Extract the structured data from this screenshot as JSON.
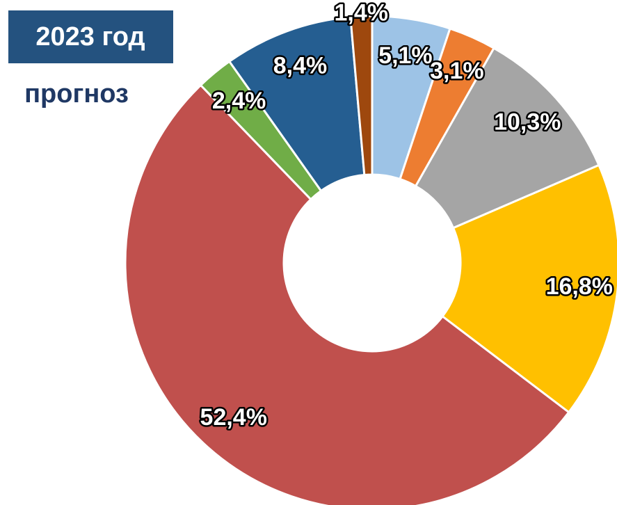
{
  "chart_data": {
    "type": "donut",
    "title": "2023 год",
    "subtitle": "прогноз",
    "categories": [
      null,
      null,
      null,
      null,
      null,
      null,
      null,
      null
    ],
    "values": [
      5.1,
      3.1,
      10.3,
      16.8,
      52.4,
      2.4,
      8.4,
      1.4
    ],
    "value_labels": [
      "5,1%",
      "3,1%",
      "10,3%",
      "16,8%",
      "52,4%",
      "2,4%",
      "8,4%",
      "1,4%"
    ],
    "colors": [
      "#9dc3e6",
      "#ed7d31",
      "#a5a5a5",
      "#ffc000",
      "#c0504d",
      "#70ad47",
      "#255e91",
      "#9e480e"
    ]
  }
}
